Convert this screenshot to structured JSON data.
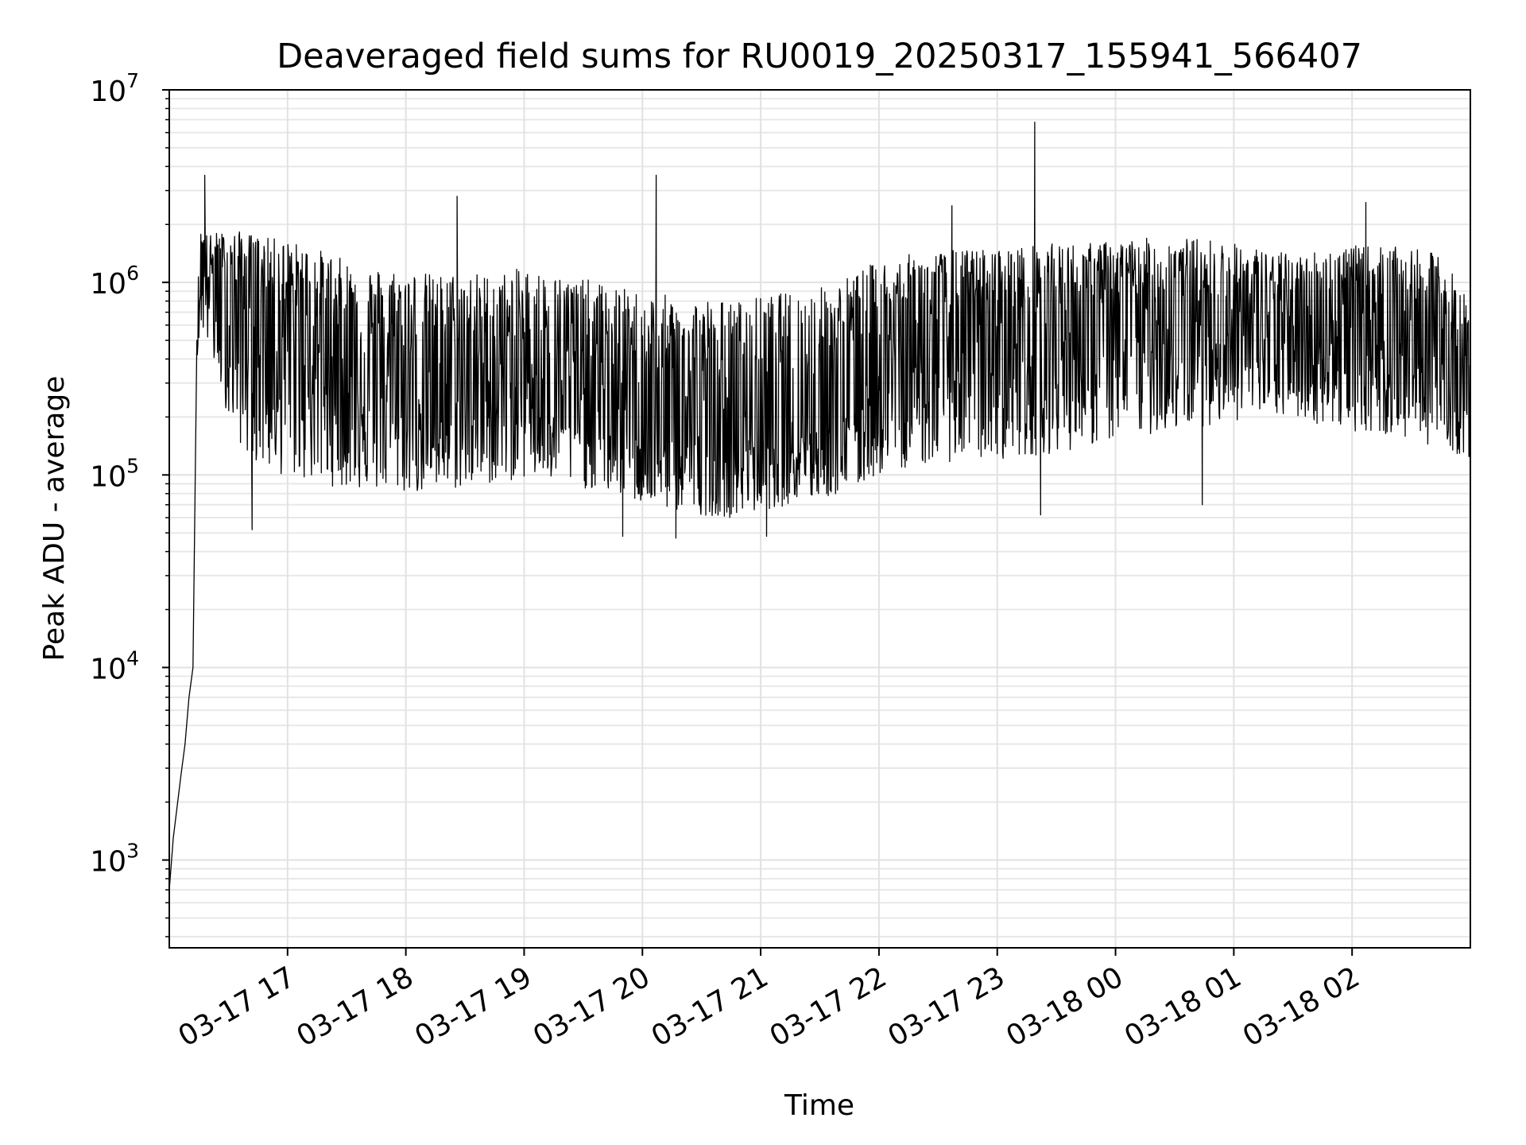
{
  "chart_data": {
    "type": "line",
    "title": "Deaveraged field sums for RU0019_20250317_155941_566407",
    "xlabel": "Time",
    "ylabel": "Peak ADU - average",
    "yscale": "log",
    "ylim": [
      350,
      10000000
    ],
    "xlim": [
      "2025-03-17 16:00",
      "2025-03-18 03:00"
    ],
    "x_tick_labels": [
      "03-17 17",
      "03-17 18",
      "03-17 19",
      "03-17 20",
      "03-17 21",
      "03-17 22",
      "03-17 23",
      "03-18 00",
      "03-18 01",
      "03-18 02"
    ],
    "x_tick_times": [
      "2025-03-17 17:00",
      "2025-03-17 18:00",
      "2025-03-17 19:00",
      "2025-03-17 20:00",
      "2025-03-17 21:00",
      "2025-03-17 22:00",
      "2025-03-17 23:00",
      "2025-03-18 00:00",
      "2025-03-18 01:00",
      "2025-03-18 02:00"
    ],
    "y_ticks": [
      {
        "base": "10",
        "exp": "3",
        "value": 1000
      },
      {
        "base": "10",
        "exp": "4",
        "value": 10000
      },
      {
        "base": "10",
        "exp": "5",
        "value": 100000
      },
      {
        "base": "10",
        "exp": "6",
        "value": 1000000
      },
      {
        "base": "10",
        "exp": "7",
        "value": 10000000
      }
    ],
    "grid": true,
    "series": [
      {
        "color": "#000000",
        "x": [
          "2025-03-17 16:00",
          "2025-03-17 16:02",
          "2025-03-17 16:04",
          "2025-03-17 16:06",
          "2025-03-17 16:08",
          "2025-03-17 16:10",
          "2025-03-17 16:12",
          "2025-03-17 16:14",
          "2025-03-17 16:16",
          "2025-03-17 16:18",
          "2025-03-17 16:20",
          "2025-03-17 16:25",
          "2025-03-17 16:30",
          "2025-03-17 16:35",
          "2025-03-17 16:40",
          "2025-03-17 16:45",
          "2025-03-17 16:50",
          "2025-03-17 16:55",
          "2025-03-17 17:05",
          "2025-03-17 17:15",
          "2025-03-17 17:30",
          "2025-03-17 17:45",
          "2025-03-17 18:00",
          "2025-03-17 18:15",
          "2025-03-17 18:30",
          "2025-03-17 18:45",
          "2025-03-17 19:00",
          "2025-03-17 19:15",
          "2025-03-17 19:30",
          "2025-03-17 19:45",
          "2025-03-17 20:00",
          "2025-03-17 20:15",
          "2025-03-17 20:30",
          "2025-03-17 20:45",
          "2025-03-17 21:00",
          "2025-03-17 21:15",
          "2025-03-17 21:30",
          "2025-03-17 21:45",
          "2025-03-17 22:00",
          "2025-03-17 22:15",
          "2025-03-17 22:30",
          "2025-03-17 22:45",
          "2025-03-17 23:00",
          "2025-03-17 23:15",
          "2025-03-17 23:30",
          "2025-03-17 23:45",
          "2025-03-18 00:00",
          "2025-03-18 00:15",
          "2025-03-18 00:30",
          "2025-03-18 00:45",
          "2025-03-18 01:00",
          "2025-03-18 01:15",
          "2025-03-18 01:30",
          "2025-03-18 01:45",
          "2025-03-18 02:00",
          "2025-03-18 02:15",
          "2025-03-18 02:30",
          "2025-03-18 02:45",
          "2025-03-18 03:00"
        ],
        "y": [
          700,
          1300,
          1900,
          2800,
          4000,
          7000,
          10000,
          500000,
          1200000,
          1500000,
          1300000,
          900000,
          850000,
          800000,
          900000,
          800000,
          750000,
          700000,
          600000,
          500000,
          420000,
          350000,
          300000,
          280000,
          300000,
          320000,
          380000,
          330000,
          300000,
          260000,
          210000,
          180000,
          170000,
          160000,
          170000,
          190000,
          200000,
          240000,
          380000,
          420000,
          460000,
          500000,
          520000,
          560000,
          600000,
          640000,
          680000,
          700000,
          720000,
          700000,
          620000,
          560000,
          520000,
          580000,
          650000,
          600000,
          550000,
          500000,
          200000
        ],
        "envelope_high": [
          700,
          1300,
          1900,
          2800,
          4000,
          7000,
          10000,
          800000,
          1900000,
          1800000,
          1750000,
          1850000,
          1800000,
          1850000,
          1800000,
          1750000,
          1700000,
          1700000,
          1600000,
          1500000,
          1300000,
          1200000,
          1200000,
          1100000,
          1150000,
          1100000,
          1200000,
          1100000,
          1050000,
          950000,
          900000,
          850000,
          850000,
          800000,
          850000,
          900000,
          950000,
          1100000,
          1300000,
          1400000,
          1450000,
          1500000,
          1500000,
          1550000,
          1600000,
          1600000,
          1650000,
          1700000,
          1700000,
          1700000,
          1600000,
          1500000,
          1400000,
          1500000,
          1550000,
          1550000,
          1500000,
          1400000,
          800000
        ],
        "envelope_low": [
          700,
          1300,
          1900,
          2800,
          4000,
          7000,
          10000,
          400000,
          600000,
          500000,
          450000,
          300000,
          200000,
          150000,
          120000,
          110000,
          105000,
          100000,
          95000,
          90000,
          85000,
          82000,
          80000,
          80000,
          85000,
          90000,
          95000,
          90000,
          85000,
          80000,
          70000,
          65000,
          62000,
          60000,
          65000,
          70000,
          75000,
          80000,
          100000,
          110000,
          115000,
          120000,
          120000,
          125000,
          130000,
          140000,
          150000,
          160000,
          170000,
          180000,
          190000,
          200000,
          200000,
          180000,
          170000,
          160000,
          150000,
          140000,
          120000
        ],
        "spikes": [
          {
            "x": "2025-03-17 16:18",
            "y": 3600000
          },
          {
            "x": "2025-03-17 16:42",
            "y": 52000
          },
          {
            "x": "2025-03-17 18:26",
            "y": 2800000
          },
          {
            "x": "2025-03-17 19:50",
            "y": 48000
          },
          {
            "x": "2025-03-17 20:07",
            "y": 3600000
          },
          {
            "x": "2025-03-17 20:17",
            "y": 47000
          },
          {
            "x": "2025-03-17 21:03",
            "y": 48000
          },
          {
            "x": "2025-03-17 22:37",
            "y": 2500000
          },
          {
            "x": "2025-03-17 23:19",
            "y": 6800000
          },
          {
            "x": "2025-03-17 23:22",
            "y": 62000
          },
          {
            "x": "2025-03-18 00:44",
            "y": 70000
          },
          {
            "x": "2025-03-18 02:07",
            "y": 2600000
          }
        ]
      }
    ]
  }
}
